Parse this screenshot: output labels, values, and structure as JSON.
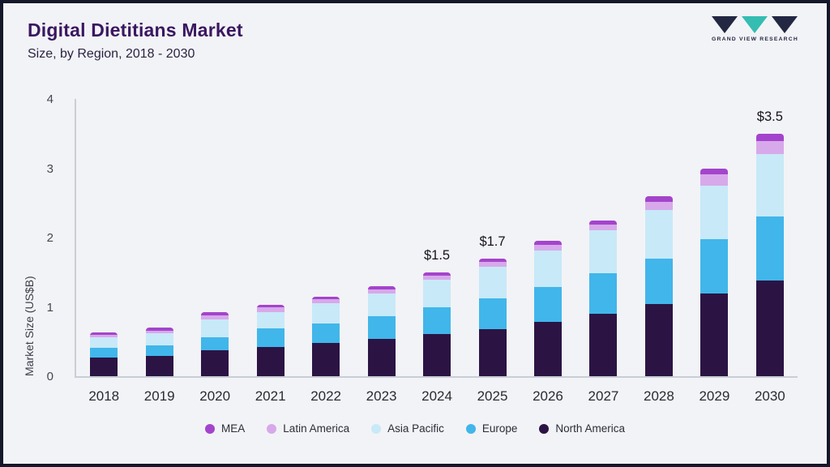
{
  "header": {
    "title": "Digital Dietitians Market",
    "subtitle": "Size, by Region, 2018 - 2030",
    "logo_text": "GRAND VIEW RESEARCH"
  },
  "chart_data": {
    "type": "bar",
    "stacked": true,
    "title": "Digital Dietitians Market Size, by Region, 2018 - 2030",
    "xlabel": "",
    "ylabel": "Market Size (US$B)",
    "ylim": [
      0,
      4
    ],
    "yticks": [
      0,
      1,
      2,
      3,
      4
    ],
    "grid": false,
    "legend_position": "bottom",
    "categories": [
      "2018",
      "2019",
      "2020",
      "2021",
      "2022",
      "2023",
      "2024",
      "2025",
      "2026",
      "2027",
      "2028",
      "2029",
      "2030"
    ],
    "series": [
      {
        "name": "North America",
        "color": "#2b1444",
        "values": [
          0.27,
          0.29,
          0.38,
          0.42,
          0.48,
          0.54,
          0.61,
          0.68,
          0.79,
          0.9,
          1.04,
          1.19,
          1.38
        ]
      },
      {
        "name": "Europe",
        "color": "#41b6ea",
        "values": [
          0.14,
          0.15,
          0.18,
          0.27,
          0.28,
          0.32,
          0.38,
          0.44,
          0.5,
          0.58,
          0.66,
          0.79,
          0.92
        ]
      },
      {
        "name": "Asia Pacific",
        "color": "#c8e9f8",
        "values": [
          0.15,
          0.18,
          0.26,
          0.24,
          0.29,
          0.33,
          0.4,
          0.46,
          0.52,
          0.62,
          0.7,
          0.77,
          0.9
        ]
      },
      {
        "name": "Latin America",
        "color": "#d7a9ea",
        "values": [
          0.04,
          0.04,
          0.06,
          0.06,
          0.06,
          0.06,
          0.06,
          0.07,
          0.08,
          0.09,
          0.12,
          0.16,
          0.19
        ]
      },
      {
        "name": "MEA",
        "color": "#a444cc",
        "values": [
          0.03,
          0.04,
          0.04,
          0.04,
          0.04,
          0.05,
          0.05,
          0.05,
          0.06,
          0.06,
          0.08,
          0.09,
          0.11
        ]
      }
    ],
    "legend": [
      "MEA",
      "Latin America",
      "Asia Pacific",
      "Europe",
      "North America"
    ],
    "annotations": [
      {
        "category": "2024",
        "text": "$1.5"
      },
      {
        "category": "2025",
        "text": "$1.7"
      },
      {
        "category": "2030",
        "text": "$3.5"
      }
    ]
  }
}
